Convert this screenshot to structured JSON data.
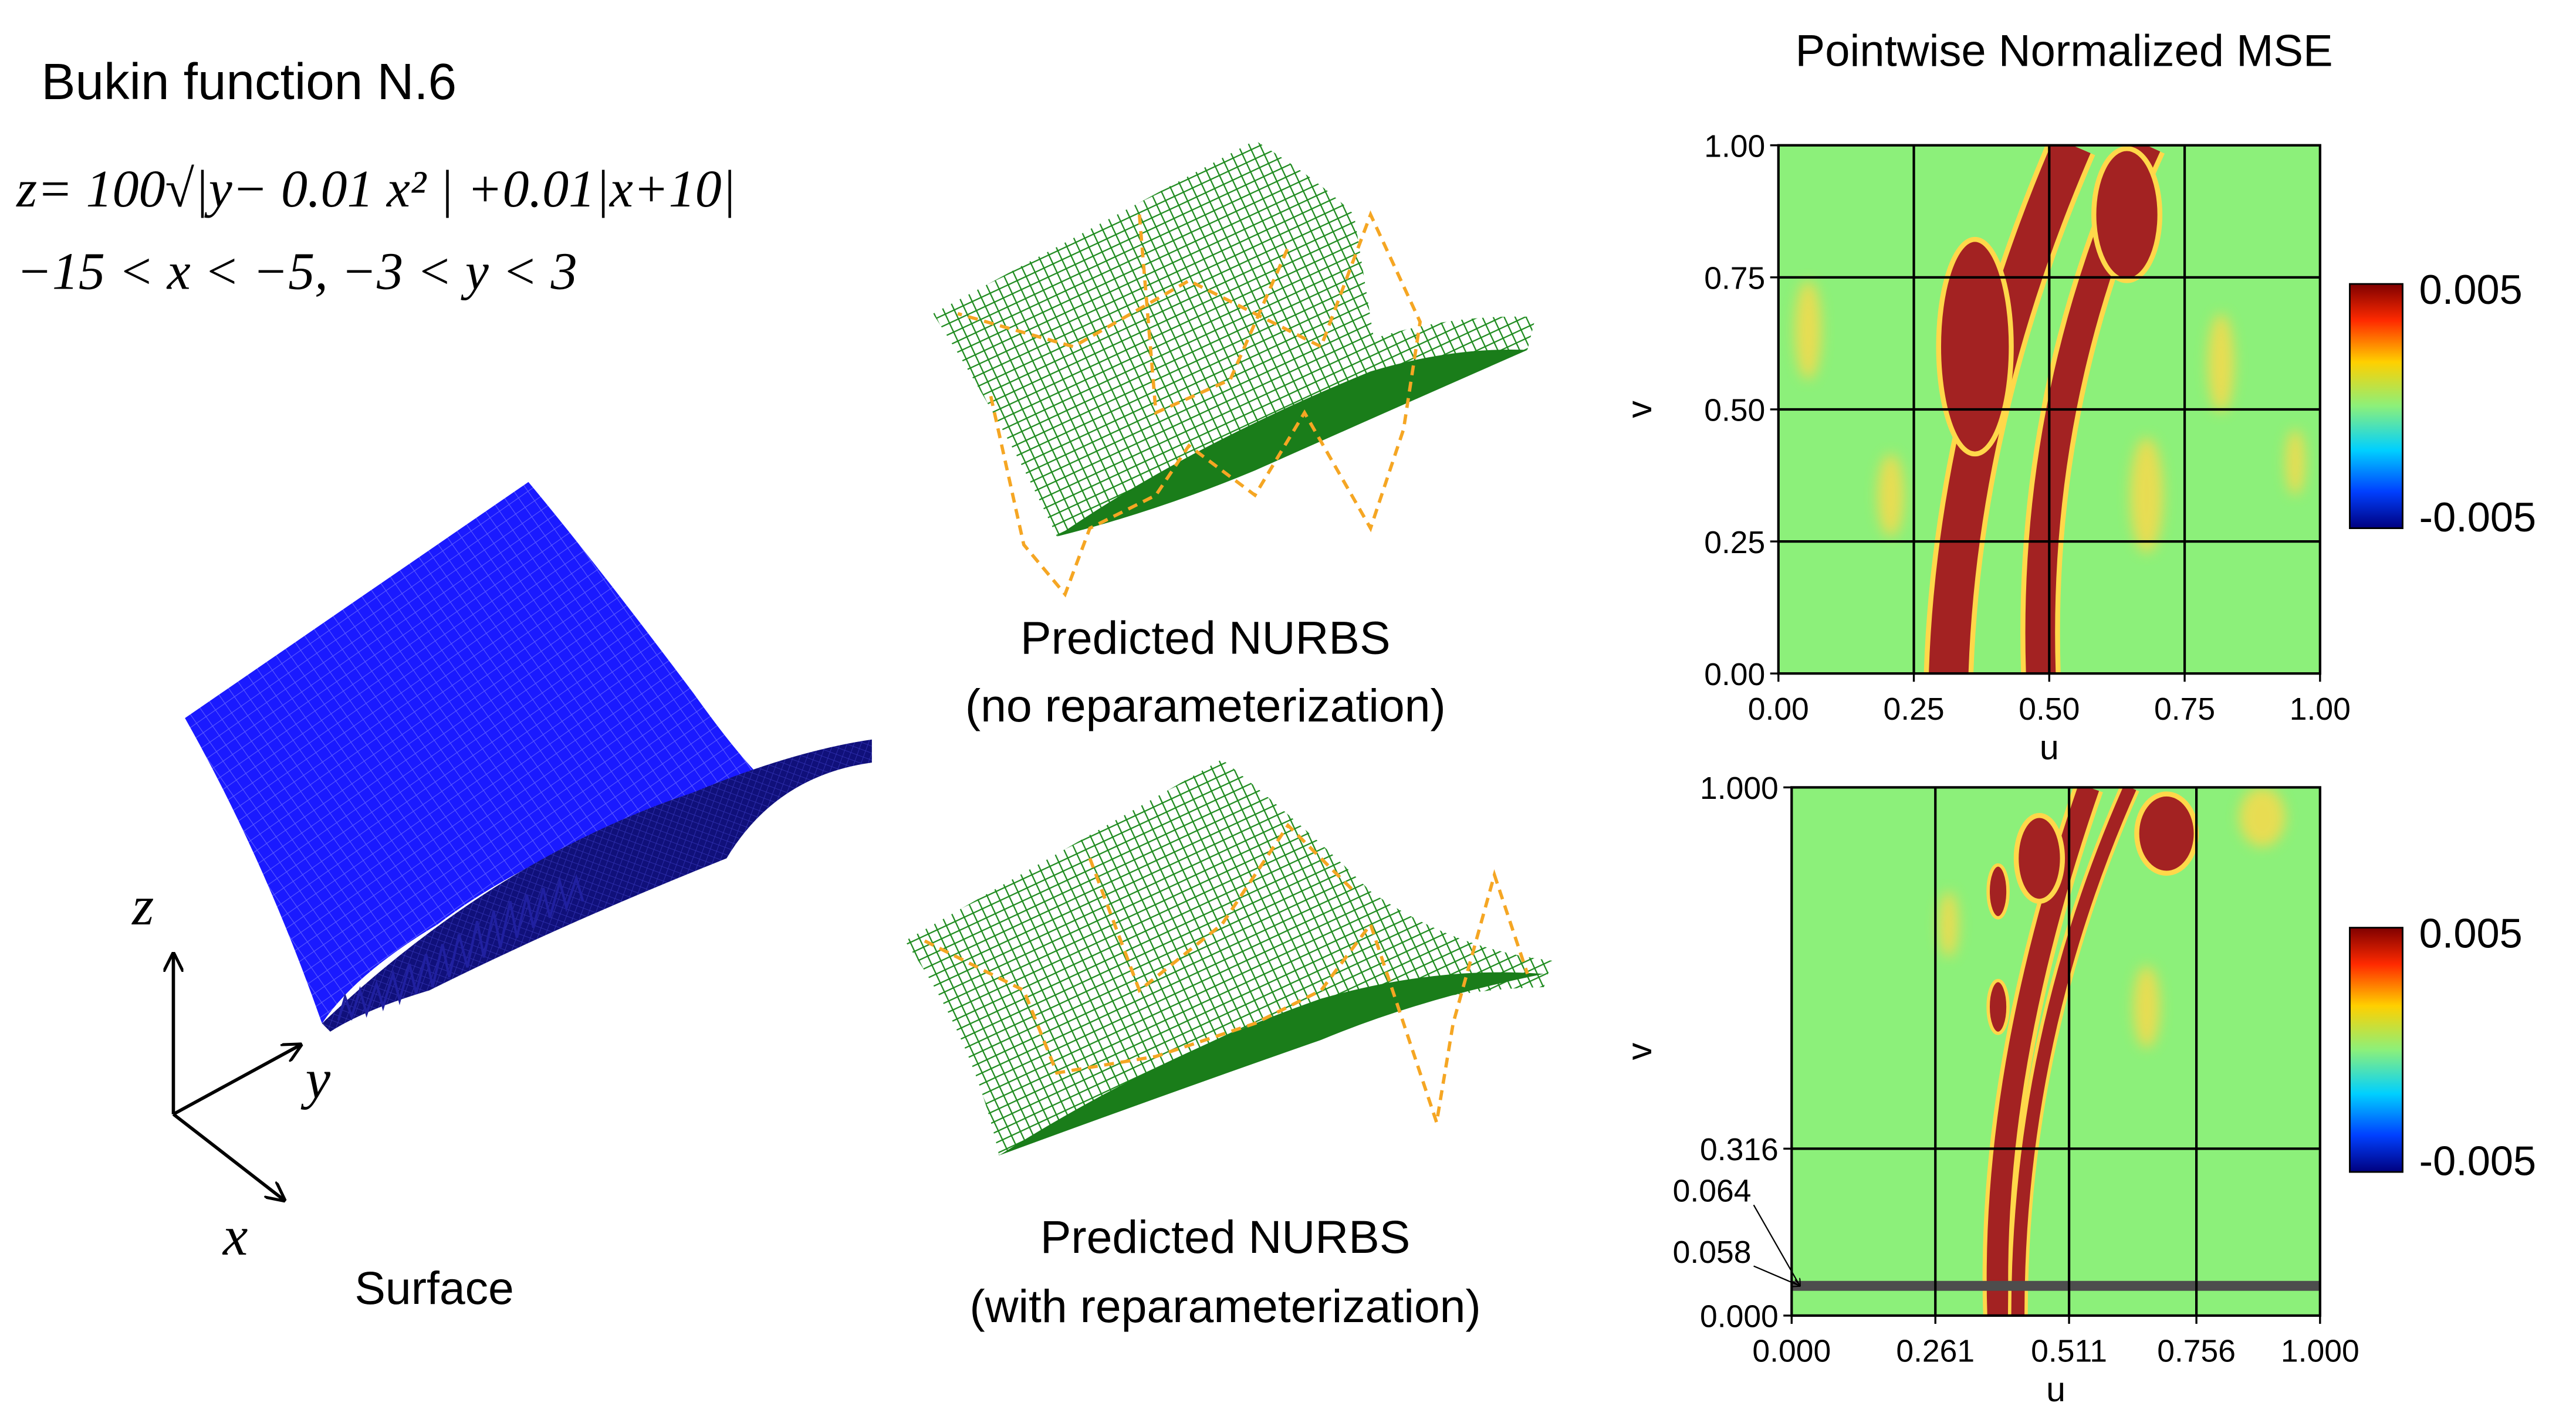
{
  "title": "Bukin function N.6",
  "equation": [
    "z= 100√|y− 0.01 x² | +0.01|x+10|",
    "−15 < x < −5, −3 < y < 3"
  ],
  "surface": {
    "caption": "Surface",
    "axes": {
      "z": "z",
      "y": "y",
      "x": "x"
    }
  },
  "predictions": [
    {
      "caption": [
        "Predicted NURBS",
        "(no reparameterization)"
      ]
    },
    {
      "caption": [
        "Predicted NURBS",
        "(with reparameterization)"
      ]
    }
  ],
  "error_maps": {
    "title": "Pointwise Normalized MSE",
    "panels": [
      {
        "x_label": "u",
        "y_label": "v",
        "x_ticks": [
          "0.00",
          "0.25",
          "0.50",
          "0.75",
          "1.00"
        ],
        "y_ticks": [
          "0.00",
          "0.25",
          "0.50",
          "0.75",
          "1.00"
        ],
        "colorbar": [
          "0.005",
          "-0.005"
        ]
      },
      {
        "x_label": "u",
        "y_label": "v",
        "x_ticks": [
          "0.000",
          "0.261",
          "0.511",
          "0.756",
          "1.000"
        ],
        "y_ticks": [
          "0.000",
          "0.058",
          "0.064",
          "0.316",
          "1.000"
        ],
        "colorbar": [
          "0.005",
          "-0.005"
        ]
      }
    ]
  }
}
